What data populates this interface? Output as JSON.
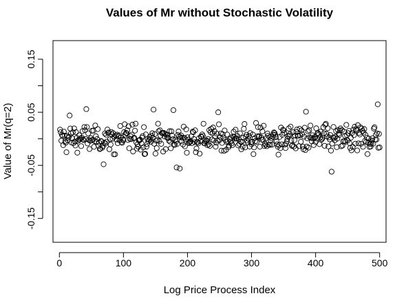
{
  "chart_data": {
    "type": "scatter",
    "title": "Values of Mr without Stochastic Volatility",
    "xlabel": "Log Price Process Index",
    "ylabel": "Value of Mr(q=2)",
    "xlim": [
      -10,
      510
    ],
    "ylim": [
      -0.195,
      0.185
    ],
    "xticks": [
      0,
      100,
      200,
      300,
      400,
      500
    ],
    "xtick_labels": [
      "0",
      "100",
      "200",
      "300",
      "400",
      "500"
    ],
    "yticks": [
      -0.15,
      -0.1,
      -0.05,
      0.0,
      0.05,
      0.1,
      0.15
    ],
    "ytick_labels": [
      "-0.15",
      "",
      "-0.05",
      "",
      "0.05",
      "",
      "0.15"
    ],
    "grid": false,
    "legend": "none",
    "marker": "open-circle",
    "color": "#000000",
    "n_points": 500,
    "summary": {
      "typical_range": [
        -0.03,
        0.03
      ],
      "max": 0.065,
      "min": -0.062
    },
    "highlighted_points": [
      {
        "x": 16,
        "y": 0.044
      },
      {
        "x": 42,
        "y": 0.056
      },
      {
        "x": 69,
        "y": -0.048
      },
      {
        "x": 147,
        "y": 0.055
      },
      {
        "x": 178,
        "y": 0.054
      },
      {
        "x": 183,
        "y": -0.054
      },
      {
        "x": 188,
        "y": -0.056
      },
      {
        "x": 248,
        "y": 0.05
      },
      {
        "x": 385,
        "y": 0.051
      },
      {
        "x": 425,
        "y": -0.062
      },
      {
        "x": 497,
        "y": 0.065
      }
    ]
  }
}
